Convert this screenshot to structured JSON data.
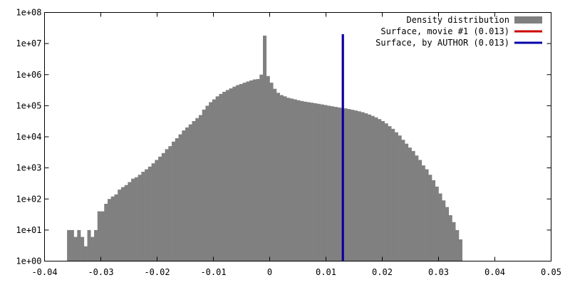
{
  "chart_data": {
    "type": "bar",
    "y_scale": "log",
    "xlim": [
      -0.04,
      0.05
    ],
    "ylim": [
      1,
      100000000
    ],
    "x_ticks": [
      "-0.04",
      "-0.03",
      "-0.02",
      "-0.01",
      "0",
      "0.01",
      "0.02",
      "0.03",
      "0.04",
      "0.05"
    ],
    "x_tick_values": [
      -0.04,
      -0.03,
      -0.02,
      -0.01,
      0,
      0.01,
      0.02,
      0.03,
      0.04,
      0.05
    ],
    "y_ticks": [
      "1e+00",
      "1e+01",
      "1e+02",
      "1e+03",
      "1e+04",
      "1e+05",
      "1e+06",
      "1e+07",
      "1e+08"
    ],
    "y_tick_values": [
      1,
      10,
      100,
      1000,
      10000,
      100000,
      1000000,
      10000000,
      100000000
    ],
    "grid": false,
    "legend_position": "top-right",
    "bin_width": 0.0006,
    "bin_start": -0.036,
    "histogram_counts": [
      10,
      10,
      6,
      10,
      6,
      3,
      10,
      6,
      10,
      40,
      40,
      70,
      100,
      120,
      140,
      200,
      240,
      280,
      350,
      450,
      500,
      600,
      750,
      900,
      1100,
      1400,
      1800,
      2300,
      3000,
      4000,
      5000,
      7000,
      9000,
      12000,
      16000,
      20000,
      25000,
      32000,
      40000,
      50000,
      75000,
      100000,
      130000,
      160000,
      200000,
      240000,
      280000,
      320000,
      360000,
      410000,
      460000,
      500000,
      550000,
      600000,
      650000,
      700000,
      720000,
      1000000,
      18000000,
      900000,
      550000,
      350000,
      260000,
      220000,
      200000,
      180000,
      170000,
      160000,
      150000,
      142000,
      135000,
      130000,
      125000,
      120000,
      115000,
      110000,
      105000,
      100000,
      96000,
      92000,
      88000,
      85000,
      82000,
      78000,
      74000,
      70000,
      66000,
      62000,
      57000,
      52000,
      47000,
      42000,
      37000,
      32000,
      27000,
      22000,
      18000,
      14000,
      11000,
      8000,
      6000,
      4500,
      3500,
      2500,
      1800,
      1200,
      900,
      600,
      400,
      250,
      150,
      90,
      55,
      30,
      18,
      10,
      5
    ],
    "series": [
      {
        "name": "Density distribution",
        "color": "#808080",
        "kind": "histogram"
      },
      {
        "name": "Surface, movie #1 (0.013)",
        "color": "#cc0000",
        "kind": "vline",
        "x": 0.013,
        "y_top": 20000000
      },
      {
        "name": "Surface, by AUTHOR (0.013)",
        "color": "#0000aa",
        "kind": "vline",
        "x": 0.013,
        "y_top": 20000000
      }
    ]
  }
}
